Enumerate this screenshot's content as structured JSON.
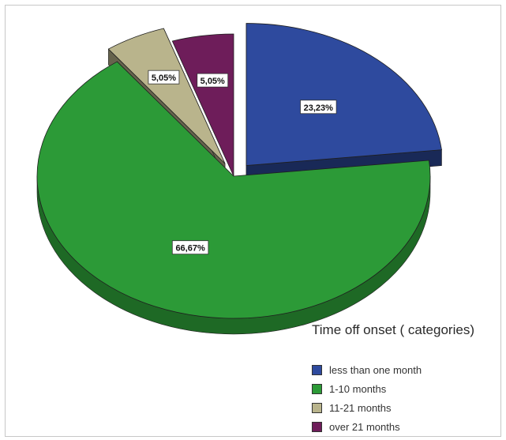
{
  "chart_data": {
    "type": "pie",
    "title": "",
    "legend_title": "Time off onset ( categories)",
    "legend_position": "bottom-right",
    "categories": [
      "less than one month",
      "1-10 months",
      "11-21 months",
      "over 21 months"
    ],
    "values": [
      23.23,
      66.67,
      5.05,
      5.05
    ],
    "labels": [
      "23,23%",
      "66,67%",
      "5,05%",
      "5,05%"
    ],
    "colors": [
      "#2e4a9e",
      "#2c9a37",
      "#b9b48c",
      "#6e1d5a"
    ],
    "exploded": [
      true,
      false,
      true,
      false
    ],
    "style": "3d"
  }
}
